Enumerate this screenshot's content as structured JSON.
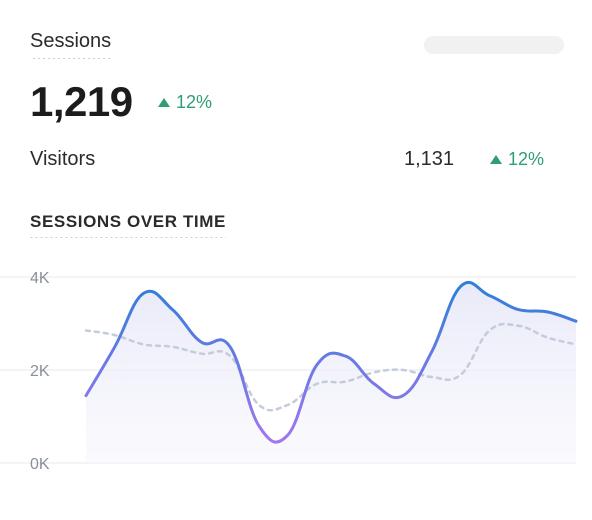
{
  "header": {
    "title": "Sessions",
    "value": "1,219",
    "delta": "12%"
  },
  "visitors": {
    "label": "Visitors",
    "value": "1,131",
    "delta": "12%"
  },
  "colors": {
    "accent_blue": "#3f7fd0",
    "accent_purple": "#9b72e6",
    "positive": "#2f9e73",
    "comparison": "#c4ccdb"
  },
  "chart_data": {
    "type": "area",
    "title": "SESSIONS OVER TIME",
    "xlabel": "",
    "ylabel": "",
    "ylim": [
      0,
      4000
    ],
    "y_ticks": [
      {
        "value": 0,
        "label": "0K"
      },
      {
        "value": 2000,
        "label": "2K"
      },
      {
        "value": 4000,
        "label": "4K"
      }
    ],
    "grid": true,
    "series": [
      {
        "values": [
          1450,
          2500,
          3650,
          3300,
          2600,
          2500,
          800,
          600,
          2100,
          2300,
          1700,
          1450,
          2400,
          3800,
          3600,
          3300,
          3250,
          3050
        ]
      },
      {
        "style": "dashed",
        "values": [
          2850,
          2750,
          2550,
          2500,
          2350,
          2300,
          1250,
          1250,
          1700,
          1750,
          1950,
          2000,
          1850,
          1900,
          2850,
          2950,
          2700,
          2550
        ]
      }
    ]
  }
}
